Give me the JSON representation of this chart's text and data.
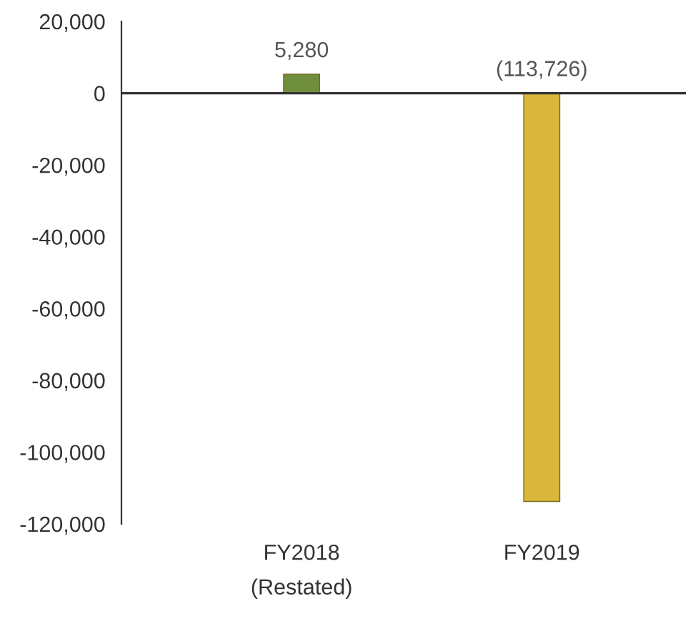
{
  "chart_data": {
    "type": "bar",
    "categories": [
      "FY2018\n(Restated)",
      "FY2019"
    ],
    "values": [
      5280,
      -113726
    ],
    "colors": [
      "#6f8f3c",
      "#d9b73a"
    ],
    "value_labels": [
      "5,280",
      "(113,726)"
    ],
    "ylim": [
      -120000,
      20000
    ],
    "yticks": [
      {
        "value": -120000,
        "label": "-120,000"
      },
      {
        "value": -100000,
        "label": "-100,000"
      },
      {
        "value": -80000,
        "label": "-80,000"
      },
      {
        "value": -60000,
        "label": "-60,000"
      },
      {
        "value": -40000,
        "label": "-40,000"
      },
      {
        "value": -20000,
        "label": "-20,000"
      },
      0,
      {
        "value": 20000,
        "label": "20,000"
      }
    ],
    "ref_lines": [
      {
        "axis": "y",
        "value": 0,
        "color": "#333333"
      }
    ],
    "legend": false
  }
}
